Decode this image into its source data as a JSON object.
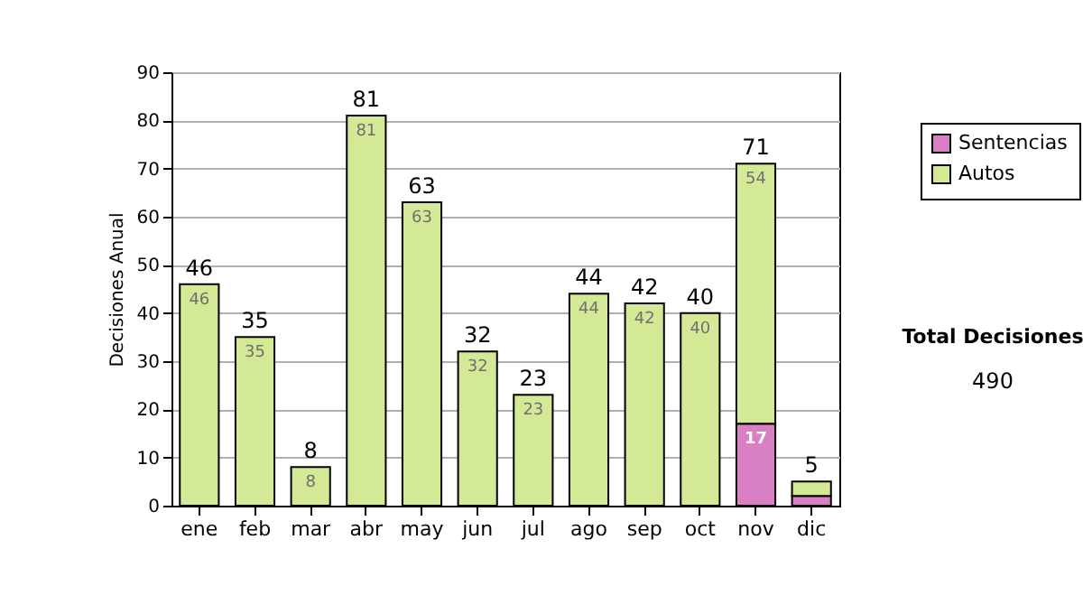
{
  "chart_data": {
    "type": "bar",
    "stacked": true,
    "ylabel": "Decisiones Anual",
    "categories": [
      "ene",
      "feb",
      "mar",
      "abr",
      "may",
      "jun",
      "jul",
      "ago",
      "sep",
      "oct",
      "nov",
      "dic"
    ],
    "series": [
      {
        "name": "Sentencias",
        "color": "#d97fc4",
        "values": [
          0,
          0,
          0,
          0,
          0,
          0,
          0,
          0,
          0,
          0,
          17,
          2
        ],
        "value_labels": [
          null,
          null,
          null,
          null,
          null,
          null,
          null,
          null,
          null,
          null,
          "17",
          null
        ]
      },
      {
        "name": "Autos",
        "color": "#d4e996",
        "values": [
          46,
          35,
          8,
          81,
          63,
          32,
          23,
          44,
          42,
          40,
          54,
          3
        ],
        "value_labels": [
          "46",
          "35",
          "8",
          "81",
          "63",
          "32",
          "23",
          "44",
          "42",
          "40",
          "54",
          null
        ]
      }
    ],
    "totals": [
      "46",
      "35",
      "8",
      "81",
      "63",
      "32",
      "23",
      "44",
      "42",
      "40",
      "71",
      "5"
    ],
    "ylim": [
      0,
      90
    ],
    "yticks": [
      0,
      10,
      20,
      30,
      40,
      50,
      60,
      70,
      80,
      90
    ],
    "grid": "y",
    "legend": "right",
    "annotations": [
      "Total Decisiones",
      "490"
    ]
  }
}
